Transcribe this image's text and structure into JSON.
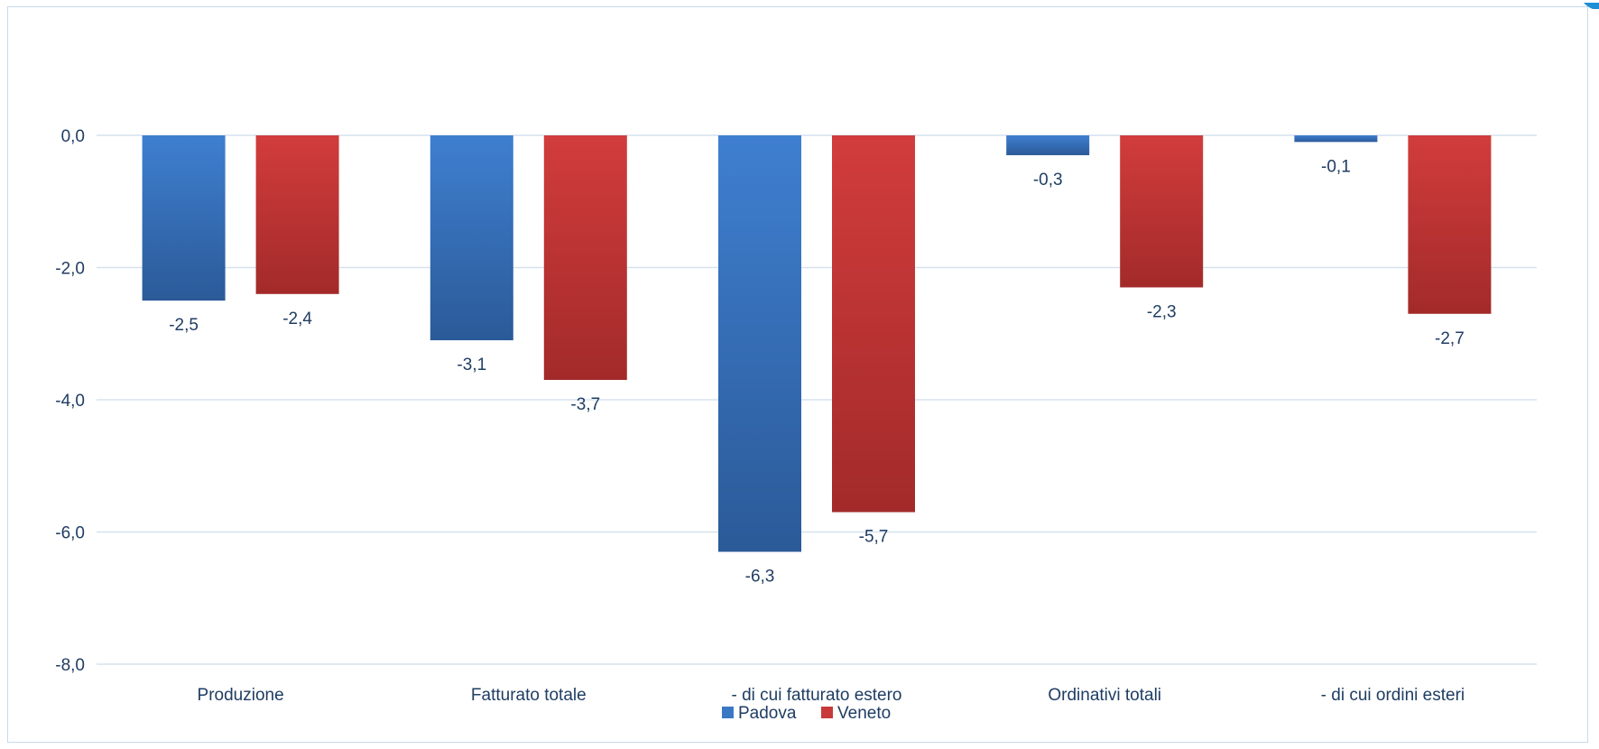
{
  "chart_data": {
    "type": "bar",
    "categories": [
      "Produzione",
      "Fatturato totale",
      "- di cui fatturato estero",
      "Ordinativi totali",
      "- di cui ordini esteri"
    ],
    "series": [
      {
        "name": "Padova",
        "values": [
          -2.5,
          -3.1,
          -6.3,
          -0.3,
          -0.1
        ],
        "labels": [
          "-2,5",
          "-3,1",
          "-6,3",
          "-0,3",
          "-0,1"
        ]
      },
      {
        "name": "Veneto",
        "values": [
          -2.4,
          -3.7,
          -5.7,
          -2.3,
          -2.7
        ],
        "labels": [
          "-2,4",
          "-3,7",
          "-5,7",
          "-2,3",
          "-2,7"
        ]
      }
    ],
    "ylim": [
      -8,
      0
    ],
    "yticks": [
      0,
      -2,
      -4,
      -6,
      -8
    ],
    "ytick_labels": [
      "0,0",
      "-2,0",
      "-4,0",
      "-6,0",
      "-8,0"
    ],
    "grid": true,
    "legend_position": "bottom",
    "colors": {
      "Padova": "#3a78c4",
      "Veneto": "#c73a3a",
      "grid": "#d6e2ef",
      "text": "#1f3d63"
    }
  }
}
